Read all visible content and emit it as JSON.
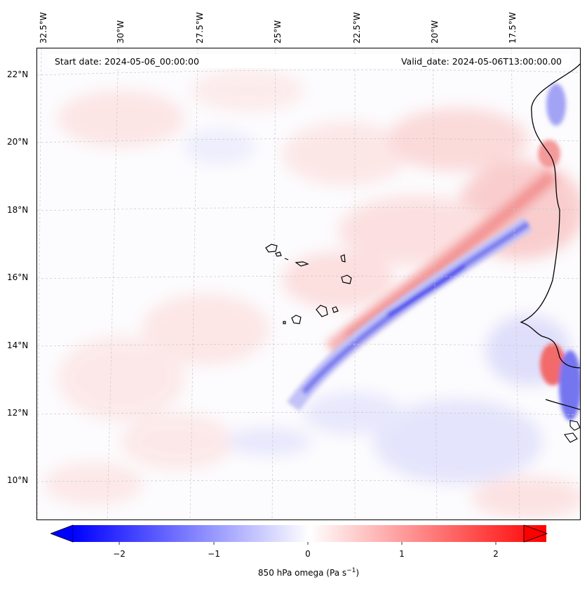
{
  "header": {
    "start_date": "Start date: 2024-05-06_00:00:00",
    "valid_date": "Valid_date: 2024-05-06T13:00:00.00"
  },
  "longitude_labels": [
    "32.5°W",
    "30°W",
    "27.5°W",
    "25°W",
    "22.5°W",
    "20°W",
    "17.5°W"
  ],
  "latitude_labels": [
    "22°N",
    "20°N",
    "18°N",
    "16°N",
    "14°N",
    "12°N",
    "10°N"
  ],
  "colorbar": {
    "label_main": "850 hPa omega (Pa s",
    "label_sup": "−1",
    "label_end": ")",
    "ticks": [
      "−2",
      "−1",
      "0",
      "1",
      "2"
    ],
    "min": -2.5,
    "max": 2.5,
    "extend": "both",
    "cmap": "bwr",
    "colors": {
      "negative": "#0000ff",
      "zero": "#ffffff",
      "positive": "#ff0000"
    }
  },
  "field": "850 hPa omega"
}
